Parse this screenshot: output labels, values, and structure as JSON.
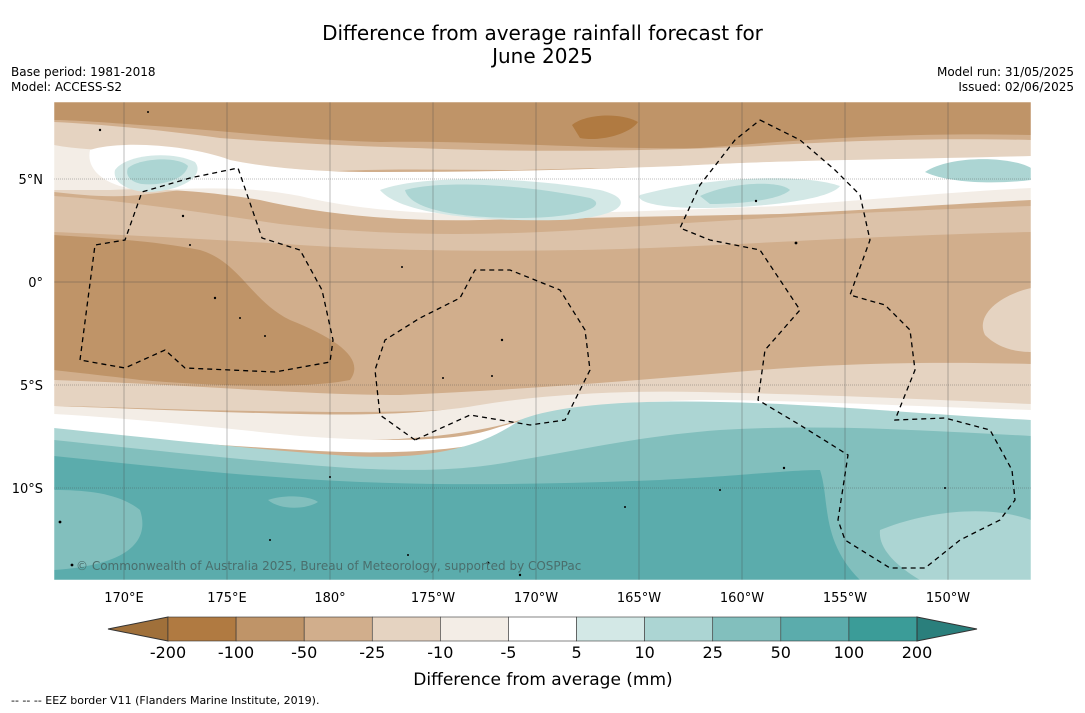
{
  "title_line1": "Difference from average rainfall forecast for",
  "title_line2": "June 2025",
  "meta_left": {
    "base_period": "Base period: 1981-2018",
    "model": "Model: ACCESS-S2"
  },
  "meta_right": {
    "model_run": "Model run: 31/05/2025",
    "issued": "Issued: 02/06/2025"
  },
  "map": {
    "lat_labels": [
      "5°N",
      "0°",
      "5°S",
      "10°S"
    ],
    "lon_labels": [
      "170°E",
      "175°E",
      "180°",
      "175°W",
      "170°W",
      "165°W",
      "160°W",
      "155°W",
      "150°W"
    ],
    "copyright": "© Commonwealth of Australia 2025, Bureau of Meteorology, supported by COSPPac"
  },
  "colorbar": {
    "ticks": [
      "-200",
      "-100",
      "-50",
      "-25",
      "-10",
      "-5",
      "5",
      "10",
      "25",
      "50",
      "100",
      "200"
    ],
    "colors": [
      "#a0703a",
      "#b07a41",
      "#bf9468",
      "#d1ae8c",
      "#e5d3c1",
      "#f3ede6",
      "#ffffff",
      "#d3e8e6",
      "#acd5d3",
      "#82bfbd",
      "#5bacac",
      "#3b9c98",
      "#2a7f7c"
    ],
    "title": "Difference from average (mm)"
  },
  "footer": "--  --  -- EEZ border V11 (Flanders Marine Institute, 2019)."
}
